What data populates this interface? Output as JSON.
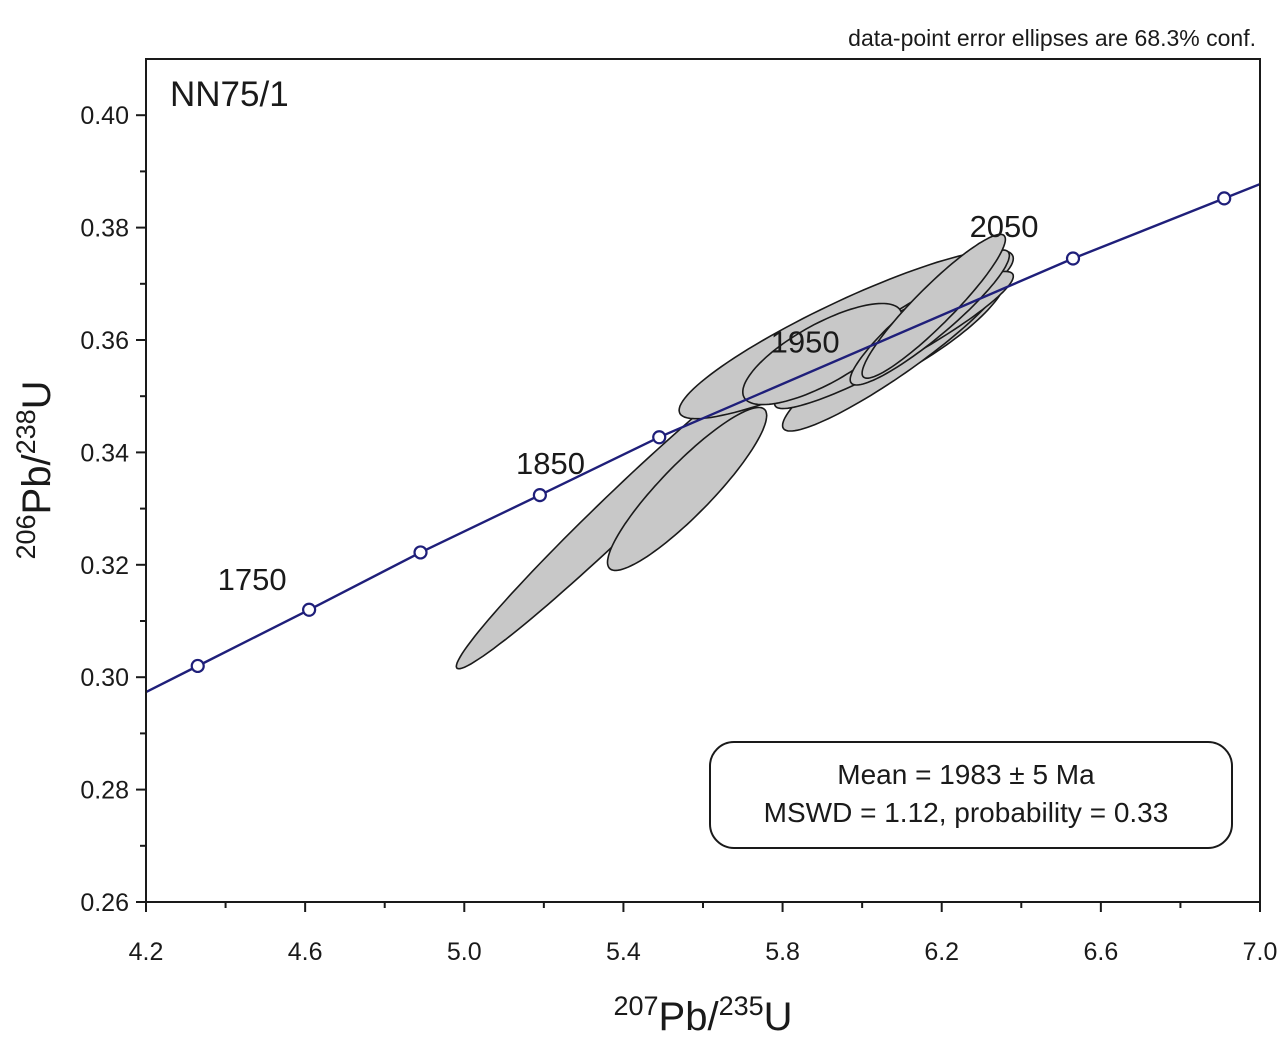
{
  "chart_data": {
    "type": "scatter",
    "subtype": "concordia-diagram",
    "note": "data-point error ellipses are 68.3% conf.",
    "sample_label": "NN75/1",
    "xlabel": {
      "sup1": "207",
      "base1": "Pb/",
      "sup2": "235",
      "base2": "U"
    },
    "ylabel": {
      "sup1": "206",
      "base1": "Pb/",
      "sup2": "238",
      "base2": "U"
    },
    "xlim": [
      4.2,
      7.0
    ],
    "ylim": [
      0.26,
      0.41
    ],
    "x_ticks": [
      "4.2",
      "4.6",
      "5.0",
      "5.4",
      "5.8",
      "6.2",
      "6.6",
      "7.0"
    ],
    "y_ticks": [
      "0.26",
      "0.28",
      "0.30",
      "0.32",
      "0.34",
      "0.36",
      "0.38",
      "0.40"
    ],
    "grid": false,
    "concordia": {
      "color": "#1f1f7a",
      "markers": [
        {
          "x": 4.33,
          "y": 0.302
        },
        {
          "x": 4.61,
          "y": 0.312
        },
        {
          "x": 4.89,
          "y": 0.3222
        },
        {
          "x": 5.19,
          "y": 0.3324
        },
        {
          "x": 5.49,
          "y": 0.3427
        },
        {
          "x": 6.53,
          "y": 0.3745
        },
        {
          "x": 6.91,
          "y": 0.3852
        }
      ],
      "age_labels": [
        {
          "text": "1750",
          "x": 4.38,
          "y": 0.3155
        },
        {
          "text": "1850",
          "x": 5.13,
          "y": 0.3362
        },
        {
          "text": "1950",
          "x": 5.77,
          "y": 0.3578
        },
        {
          "text": "2050",
          "x": 6.27,
          "y": 0.3783
        }
      ]
    },
    "ellipses": [
      {
        "cx": 5.4,
        "cy": 0.33,
        "x_err": 0.42,
        "y_err": 0.0285,
        "rho": 0.985
      },
      {
        "cx": 5.56,
        "cy": 0.3335,
        "x_err": 0.2,
        "y_err": 0.0145,
        "rho": 0.9
      },
      {
        "cx": 5.96,
        "cy": 0.361,
        "x_err": 0.42,
        "y_err": 0.015,
        "rho": 0.9
      },
      {
        "cx": 6.13,
        "cy": 0.3612,
        "x_err": 0.23,
        "y_err": 0.011,
        "rho": 0.85
      },
      {
        "cx": 6.08,
        "cy": 0.358,
        "x_err": 0.28,
        "y_err": 0.0142,
        "rho": 0.93
      },
      {
        "cx": 6.06,
        "cy": 0.36,
        "x_err": 0.11,
        "y_err": 0.005,
        "rho": 0.6
      },
      {
        "cx": 6.08,
        "cy": 0.36,
        "x_err": 0.3,
        "y_err": 0.0122,
        "rho": 0.93
      },
      {
        "cx": 5.9,
        "cy": 0.3575,
        "x_err": 0.2,
        "y_err": 0.009,
        "rho": 0.75
      },
      {
        "cx": 6.17,
        "cy": 0.364,
        "x_err": 0.2,
        "y_err": 0.012,
        "rho": 0.92
      },
      {
        "cx": 6.18,
        "cy": 0.366,
        "x_err": 0.18,
        "y_err": 0.0128,
        "rho": 0.93
      }
    ],
    "ellipse_fill": "#c8c8c8",
    "result_box": {
      "line1": "Mean = 1983 ± 5 Ma",
      "line2": "MSWD = 1.12, probability = 0.33"
    }
  }
}
